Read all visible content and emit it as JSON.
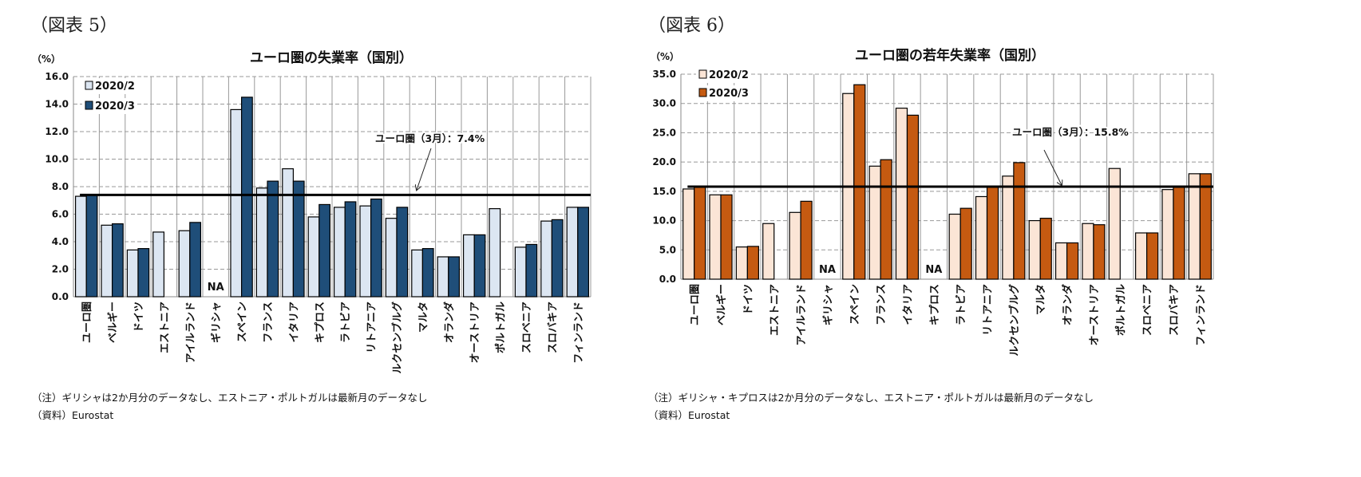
{
  "figures": {
    "left_label": "（図表 5）",
    "right_label": "（図表 6）"
  },
  "notes": {
    "left_note": "（注）ギリシャは2か月分のデータなし、エストニア・ポルトガルは最新月のデータなし",
    "left_source": "（資料）Eurostat",
    "right_note": "（注）ギリシャ・キプロスは2か月分のデータなし、エストニア・ポルトガルは最新月のデータなし",
    "right_source": "（資料）Eurostat"
  },
  "chart_data": [
    {
      "type": "bar",
      "title": "ユーロ圏の失業率（国別）",
      "ylabel": "（%）",
      "ylim": [
        0,
        16
      ],
      "yticks": [
        "0.0",
        "2.0",
        "4.0",
        "6.0",
        "8.0",
        "10.0",
        "12.0",
        "14.0",
        "16.0"
      ],
      "grid": true,
      "legend_position": "top-left",
      "categories": [
        "ユーロ圏",
        "ベルギー",
        "ドイツ",
        "エストニア",
        "アイルランド",
        "ギリシャ",
        "スペイン",
        "フランス",
        "イタリア",
        "キプロス",
        "ラトビア",
        "リトアニア",
        "ルクセンブルグ",
        "マルタ",
        "オランダ",
        "オーストリア",
        "ポルトガル",
        "スロベニア",
        "スロバキア",
        "フィンランド"
      ],
      "series": [
        {
          "name": "2020/2",
          "color": "#dce6f2",
          "values": [
            7.3,
            5.2,
            3.4,
            4.7,
            4.8,
            null,
            13.6,
            7.9,
            9.3,
            5.8,
            6.5,
            6.6,
            5.7,
            3.4,
            2.9,
            4.5,
            6.4,
            3.6,
            5.5,
            6.5
          ]
        },
        {
          "name": "2020/3",
          "color": "#1f4e79",
          "values": [
            7.4,
            5.3,
            3.5,
            null,
            5.4,
            null,
            14.5,
            8.4,
            8.4,
            6.7,
            6.9,
            7.1,
            6.5,
            3.5,
            2.9,
            4.5,
            null,
            3.8,
            5.6,
            6.5
          ]
        }
      ],
      "na_label": "NA",
      "na_categories": [
        "ギリシャ"
      ],
      "reference_line": {
        "value": 7.4,
        "label": "ユーロ圏（3月）：7.4%"
      }
    },
    {
      "type": "bar",
      "title": "ユーロ圏の若年失業率（国別）",
      "ylabel": "（%）",
      "ylim": [
        0,
        35
      ],
      "yticks": [
        "0.0",
        "5.0",
        "10.0",
        "15.0",
        "20.0",
        "25.0",
        "30.0",
        "35.0"
      ],
      "grid": true,
      "legend_position": "top-left",
      "categories": [
        "ユーロ圏",
        "ベルギー",
        "ドイツ",
        "エストニア",
        "アイルランド",
        "ギリシャ",
        "スペイン",
        "フランス",
        "イタリア",
        "キプロス",
        "ラトビア",
        "リトアニア",
        "ルクセンブルグ",
        "マルタ",
        "オランダ",
        "オーストリア",
        "ポルトガル",
        "スロベニア",
        "スロバキア",
        "フィンランド"
      ],
      "series": [
        {
          "name": "2020/2",
          "color": "#fbe5d6",
          "values": [
            15.4,
            14.4,
            5.5,
            9.5,
            11.4,
            null,
            31.7,
            19.3,
            29.2,
            null,
            11.1,
            14.1,
            17.6,
            10.0,
            6.2,
            9.5,
            18.9,
            7.9,
            15.3,
            18.0
          ]
        },
        {
          "name": "2020/3",
          "color": "#c55a11",
          "values": [
            15.8,
            14.4,
            5.6,
            null,
            13.3,
            null,
            33.2,
            20.4,
            28.0,
            null,
            12.1,
            15.8,
            19.9,
            10.4,
            6.2,
            9.3,
            null,
            7.9,
            15.9,
            18.0
          ]
        }
      ],
      "na_label": "NA",
      "na_categories": [
        "ギリシャ",
        "キプロス"
      ],
      "reference_line": {
        "value": 15.8,
        "label": "ユーロ圏（3月）：15.8%"
      }
    }
  ]
}
